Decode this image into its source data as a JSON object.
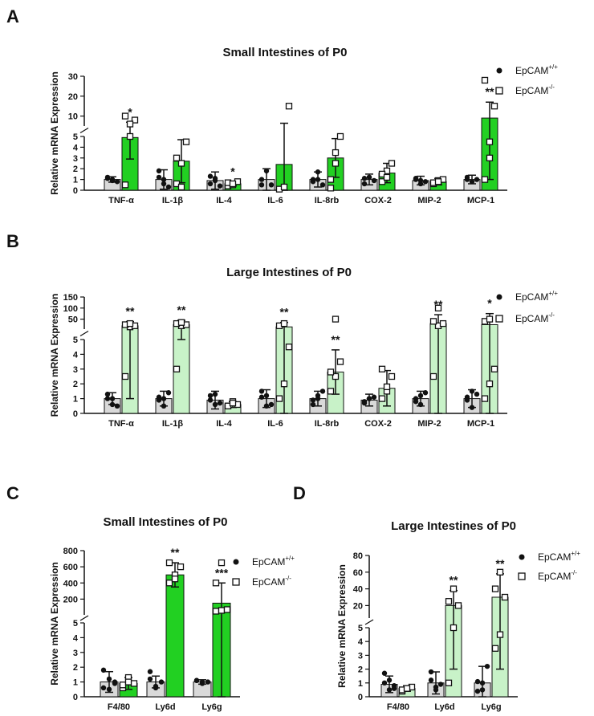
{
  "chart_data": [
    {
      "panel": "A",
      "type": "bar",
      "title": "Small Intestines of P0",
      "ylabel": "Relative mRNA Expression",
      "categories": [
        "TNF-α",
        "IL-1β",
        "IL-4",
        "IL-6",
        "IL-8rb",
        "COX-2",
        "MIP-2",
        "MCP-1"
      ],
      "axis_break": {
        "lower": [
          0,
          5
        ],
        "upper": [
          5,
          30
        ]
      },
      "yticks_lower": [
        0,
        1,
        2,
        3,
        4,
        5
      ],
      "yticks_upper": [
        10,
        20,
        30
      ],
      "significance": [
        "*",
        "",
        "*",
        "",
        "",
        "",
        "",
        "**"
      ],
      "series": [
        {
          "name": "EpCAM+/+",
          "marker": "filled-circle",
          "color": "#d9d9d9",
          "values": [
            1.0,
            1.0,
            0.9,
            1.0,
            1.0,
            1.0,
            0.9,
            1.0
          ],
          "errors": [
            0.25,
            0.9,
            0.8,
            1.0,
            0.7,
            0.5,
            0.4,
            0.4
          ],
          "points": [
            [
              1.2,
              0.9,
              0.8,
              1.1,
              1.0
            ],
            [
              1.2,
              0.6,
              0.3,
              1.8,
              1.0
            ],
            [
              1.3,
              0.9,
              0.4,
              0.6,
              1.1
            ],
            [
              0.5,
              1.8,
              0.5,
              1.0
            ],
            [
              1.0,
              1.7,
              0.5,
              0.8,
              1.0
            ],
            [
              0.6,
              1.2,
              0.9,
              1.1,
              1.2
            ],
            [
              1.1,
              0.6,
              0.8,
              1.0,
              0.9
            ],
            [
              1.2,
              0.8,
              1.0,
              1.0
            ]
          ]
        },
        {
          "name": "EpCAM-/-",
          "marker": "open-square",
          "color": "#22d022",
          "values": [
            4.9,
            2.7,
            0.6,
            2.4,
            3.0,
            1.6,
            0.8,
            9.0
          ],
          "errors": [
            2.0,
            2.0,
            0.2,
            4.0,
            1.8,
            0.9,
            0.3,
            8.0
          ],
          "points": [
            [
              0.5,
              5.0,
              8.0,
              10.0,
              6.0
            ],
            [
              0.6,
              2.5,
              4.5,
              3.0,
              0.3
            ],
            [
              0.4,
              0.5,
              0.8,
              0.7,
              0.6
            ],
            [
              0.1,
              0.3,
              15.0
            ],
            [
              0.2,
              3.5,
              5.0,
              1.0,
              2.5
            ],
            [
              0.8,
              1.8,
              2.5,
              1.5,
              1.2
            ],
            [
              0.6,
              0.9,
              1.0,
              0.7,
              0.8
            ],
            [
              1.0,
              3.0,
              15.0,
              28.0,
              4.5
            ]
          ]
        }
      ],
      "legend": "top-right"
    },
    {
      "panel": "B",
      "type": "bar",
      "title": "Large Intestines of P0",
      "ylabel": "Relative mRNA Expression",
      "categories": [
        "TNF-α",
        "IL-1β",
        "IL-4",
        "IL-6",
        "IL-8rb",
        "COX-2",
        "MIP-2",
        "MCP-1"
      ],
      "axis_break": {
        "lower": [
          0,
          5
        ],
        "upper": [
          5,
          150
        ]
      },
      "yticks_lower": [
        0,
        1,
        2,
        3,
        4,
        5
      ],
      "yticks_upper": [
        50,
        100,
        150
      ],
      "significance": [
        "**",
        "**",
        "",
        "**",
        "**",
        "",
        "**",
        "*"
      ],
      "series": [
        {
          "name": "EpCAM+/+",
          "marker": "filled-circle",
          "color": "#d9d9d9",
          "values": [
            1.0,
            1.0,
            0.9,
            1.0,
            1.0,
            0.9,
            1.0,
            1.0
          ],
          "errors": [
            0.4,
            0.5,
            0.6,
            0.6,
            0.5,
            0.4,
            0.5,
            0.6
          ],
          "points": [
            [
              1.0,
              0.6,
              0.5,
              1.3,
              1.0
            ],
            [
              1.1,
              0.5,
              1.4,
              0.9,
              1.0
            ],
            [
              1.2,
              0.6,
              0.7,
              0.9,
              1.3
            ],
            [
              1.1,
              0.5,
              0.6,
              1.5,
              1.2
            ],
            [
              0.9,
              1.2,
              1.5,
              0.6,
              1.0
            ],
            [
              0.8,
              1.0,
              1.1,
              0.7,
              1.0
            ],
            [
              1.0,
              0.6,
              1.4,
              0.8,
              1.2
            ],
            [
              1.1,
              0.4,
              1.3,
              0.9,
              1.5
            ]
          ]
        },
        {
          "name": "EpCAM-/-",
          "marker": "open-square",
          "color": "#c8f2c8",
          "values": [
            20.0,
            25.0,
            0.6,
            15.0,
            2.8,
            1.7,
            30.0,
            25.0
          ],
          "errors": [
            19.0,
            20.0,
            0.2,
            20.0,
            1.5,
            1.2,
            40.0,
            50.0
          ],
          "points": [
            [
              2.5,
              15.0,
              20.0,
              25.0,
              30.0
            ],
            [
              3.0,
              20.0,
              25.0,
              30.0,
              35.0
            ],
            [
              0.5,
              0.8,
              0.6,
              0.5,
              0.7
            ],
            [
              1.0,
              2.0,
              4.5,
              20.0,
              30.0
            ],
            [
              1.5,
              2.5,
              3.5,
              2.8,
              50.0
            ],
            [
              1.0,
              1.5,
              2.5,
              3.0,
              1.8
            ],
            [
              2.5,
              20.0,
              30.0,
              40.0,
              100.0
            ],
            [
              1.0,
              2.0,
              3.0,
              40.0,
              50.0
            ]
          ]
        }
      ],
      "legend": "top-right"
    },
    {
      "panel": "C",
      "type": "bar",
      "title": "Small Intestines of P0",
      "ylabel": "Relative mRNA Expression",
      "categories": [
        "F4/80",
        "Ly6d",
        "Ly6g"
      ],
      "axis_break": {
        "lower": [
          0,
          5
        ],
        "upper": [
          5,
          800
        ]
      },
      "yticks_lower": [
        0,
        1,
        2,
        3,
        4,
        5
      ],
      "yticks_upper": [
        200,
        400,
        600,
        800
      ],
      "significance": [
        "",
        "**",
        "***"
      ],
      "series": [
        {
          "name": "EpCAM+/+",
          "marker": "filled-circle",
          "color": "#d9d9d9",
          "values": [
            1.0,
            1.0,
            1.0
          ],
          "errors": [
            0.7,
            0.4,
            0.15
          ],
          "points": [
            [
              1.8,
              0.5,
              1.0,
              0.6,
              1.2,
              0.9
            ],
            [
              1.7,
              0.6,
              1.0,
              1.2,
              0.7
            ],
            [
              1.1,
              0.9,
              1.0,
              1.1,
              1.0
            ]
          ]
        },
        {
          "name": "EpCAM-/-",
          "marker": "open-square",
          "color": "#22d022",
          "values": [
            0.9,
            500.0,
            150.0
          ],
          "errors": [
            0.4,
            150.0,
            250.0
          ],
          "points": [
            [
              0.6,
              1.3,
              0.9,
              0.8,
              1.0
            ],
            [
              400.0,
              500.0,
              600.0,
              650.0,
              450.0
            ],
            [
              50.0,
              60.0,
              70.0,
              400.0,
              650.0
            ]
          ]
        }
      ],
      "legend": "top-right"
    },
    {
      "panel": "D",
      "type": "bar",
      "title": "Large Intestines of P0",
      "ylabel": "Relative mRNA Expression",
      "categories": [
        "F4/80",
        "Ly6d",
        "Ly6g"
      ],
      "axis_break": {
        "lower": [
          0,
          5
        ],
        "upper": [
          5,
          80
        ]
      },
      "yticks_lower": [
        0,
        1,
        2,
        3,
        4,
        5
      ],
      "yticks_upper": [
        20,
        40,
        60,
        80
      ],
      "significance": [
        "",
        "**",
        "**"
      ],
      "series": [
        {
          "name": "EpCAM+/+",
          "marker": "filled-circle",
          "color": "#d9d9d9",
          "values": [
            0.9,
            1.0,
            1.0
          ],
          "errors": [
            0.6,
            0.8,
            1.2
          ],
          "points": [
            [
              1.7,
              0.5,
              0.8,
              1.0,
              1.2,
              0.6
            ],
            [
              1.2,
              0.5,
              0.9,
              1.8,
              0.7
            ],
            [
              0.4,
              1.0,
              2.2,
              1.1,
              0.5
            ]
          ]
        },
        {
          "name": "EpCAM-/-",
          "marker": "open-square",
          "color": "#c8f2c8",
          "values": [
            0.6,
            20.0,
            30.0
          ],
          "errors": [
            0.2,
            18.0,
            28.0
          ],
          "points": [
            [
              0.4,
              0.6,
              0.7,
              0.5,
              0.6
            ],
            [
              1.0,
              5.0,
              20.0,
              25.0,
              40.0
            ],
            [
              3.5,
              4.5,
              30.0,
              40.0,
              60.0
            ]
          ]
        }
      ],
      "legend": "top-right"
    }
  ]
}
